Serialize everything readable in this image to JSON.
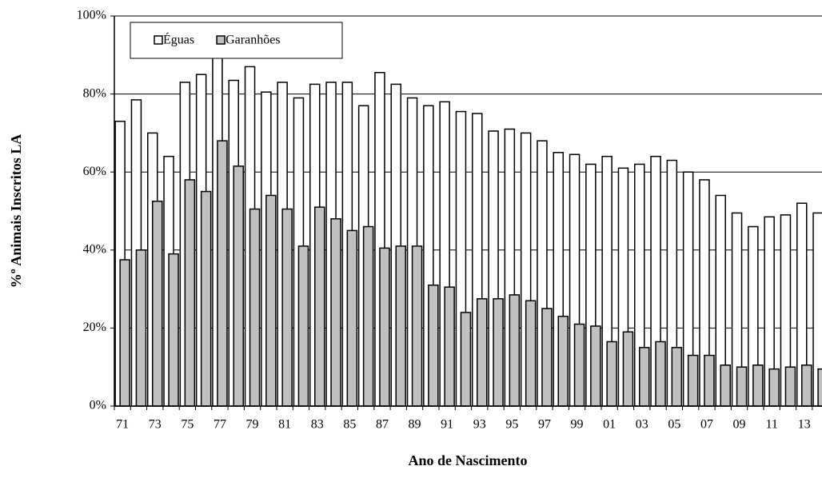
{
  "chart_data": {
    "type": "bar",
    "xlabel": "Ano de Nascimento",
    "ylabel": "%º Animais Inscritos LA",
    "categories": [
      "71",
      null,
      "73",
      null,
      "75",
      null,
      "77",
      null,
      "79",
      null,
      "81",
      null,
      "83",
      null,
      "85",
      null,
      "87",
      null,
      "89",
      null,
      "91",
      null,
      "93",
      null,
      "95",
      null,
      "97",
      null,
      "99",
      null,
      "01",
      null,
      "03",
      null,
      "05",
      null,
      "07",
      null,
      "09",
      null,
      "11",
      null,
      "13",
      null
    ],
    "series": [
      {
        "name": "Éguas",
        "color": "#ffffff",
        "values": [
          73,
          78.5,
          70,
          64,
          83,
          85,
          90,
          83.5,
          87,
          80.5,
          83,
          79,
          82.5,
          83,
          83,
          77,
          85.5,
          82.5,
          79,
          77,
          78,
          75.5,
          75,
          70.5,
          71,
          70,
          68,
          65,
          64.5,
          62,
          64,
          61,
          62,
          64,
          63,
          60,
          58,
          54,
          49.5,
          46,
          48.5,
          49,
          52,
          49.5
        ]
      },
      {
        "name": "Garanhões",
        "color": "#c0c0c0",
        "values": [
          37.5,
          40,
          52.5,
          39,
          58,
          55,
          68,
          61.5,
          50.5,
          54,
          50.5,
          41,
          51,
          48,
          45,
          46,
          40.5,
          41,
          41,
          31,
          30.5,
          24,
          27.5,
          27.5,
          28.5,
          27,
          25,
          23,
          21,
          20.5,
          16.5,
          19,
          15,
          16.5,
          15,
          13,
          13,
          10.5,
          10,
          10.5,
          9.5,
          10,
          10.5,
          9.5
        ]
      }
    ],
    "ylim": [
      0,
      100
    ],
    "yticks": [
      {
        "value": 0,
        "label": "0%"
      },
      {
        "value": 20,
        "label": "20%"
      },
      {
        "value": 40,
        "label": "40%"
      },
      {
        "value": 60,
        "label": "60%"
      },
      {
        "value": 80,
        "label": "80%"
      },
      {
        "value": 100,
        "label": "100%"
      }
    ],
    "grid": true,
    "legend": "top-left"
  }
}
